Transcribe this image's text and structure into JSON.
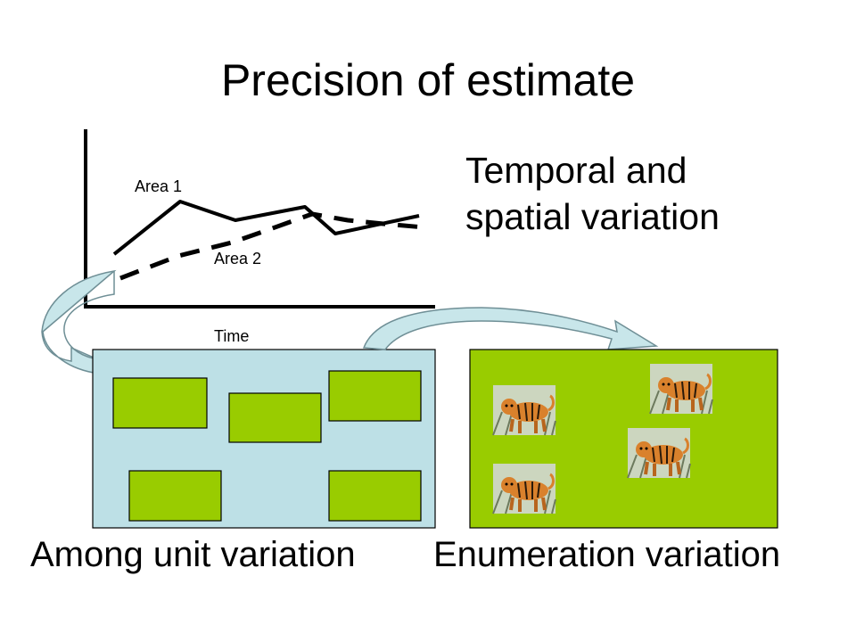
{
  "slide": {
    "title": "Precision of estimate",
    "side_text_line1": "Temporal and",
    "side_text_line2": "spatial variation"
  },
  "graph": {
    "series_1_label": "Area 1",
    "series_2_label": "Area 2",
    "x_axis_label": "Time"
  },
  "captions": {
    "left": "Among unit variation",
    "right": "Enumeration variation"
  },
  "colors": {
    "unit_box_fill": "#bde0e6",
    "plot_fill": "#99cc00",
    "arrow_fill": "#c8e6ea",
    "line": "#000000"
  },
  "icons": [
    "tiger-icon",
    "curved-arrow-icon"
  ]
}
